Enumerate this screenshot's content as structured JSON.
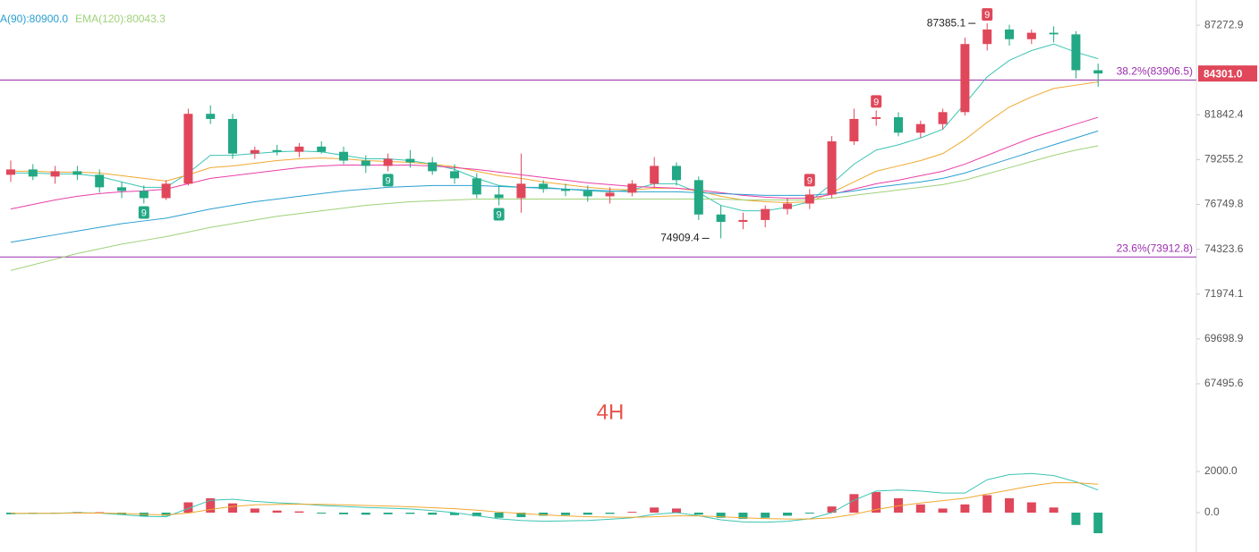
{
  "chart_data": [
    {
      "type": "candlestick",
      "log_scale": true,
      "ylim": [
        67020,
        88860
      ],
      "yticks": [
        87272.9,
        81842.4,
        79255.2,
        76749.8,
        74323.6,
        71974.1,
        69698.9,
        67495.6
      ],
      "up_color": "#e0475a",
      "down_color": "#22a884",
      "legend": [
        {
          "text": "A(90):80900.0",
          "color": "#2a9fd0"
        },
        {
          "text": "EMA(120):80043.3",
          "color": "#9fd17a"
        }
      ],
      "watermark": "4H",
      "fib_levels": [
        {
          "value": 83906.5,
          "label": "38.2%(83906.5)"
        },
        {
          "value": 73912.8,
          "label": "23.6%(73912.8)"
        }
      ],
      "fib_color": "#9b2fae",
      "last_price": {
        "value": 84301,
        "label": "84301.0"
      },
      "td_markers": [
        "9",
        "9",
        "9",
        "9",
        "9",
        "9"
      ],
      "candles": [
        [
          78400,
          79200,
          78000,
          78700
        ],
        [
          78700,
          79000,
          78100,
          78300
        ],
        [
          78300,
          78900,
          77900,
          78600
        ],
        [
          78600,
          78900,
          78100,
          78400
        ],
        [
          78400,
          78700,
          77400,
          77700
        ],
        [
          77700,
          78000,
          77100,
          77500
        ],
        [
          77500,
          77800,
          76800,
          77100
        ],
        [
          77100,
          78100,
          77000,
          77900
        ],
        [
          77900,
          82200,
          77800,
          81900
        ],
        [
          81900,
          82400,
          81300,
          81600
        ],
        [
          81600,
          81900,
          79300,
          79600
        ],
        [
          79600,
          80000,
          79300,
          79800
        ],
        [
          79800,
          80100,
          79500,
          79700
        ],
        [
          79700,
          80200,
          79400,
          80000
        ],
        [
          80000,
          80300,
          79600,
          79700
        ],
        [
          79700,
          80000,
          79000,
          79200
        ],
        [
          79200,
          79500,
          78500,
          78900
        ],
        [
          78900,
          79600,
          78600,
          79300
        ],
        [
          79300,
          79800,
          78800,
          79100
        ],
        [
          79100,
          79400,
          78400,
          78600
        ],
        [
          78600,
          79000,
          77900,
          78200
        ],
        [
          78200,
          78500,
          77100,
          77300
        ],
        [
          77300,
          77800,
          76700,
          77100
        ],
        [
          77100,
          79600,
          76300,
          77900
        ],
        [
          77900,
          78100,
          77400,
          77600
        ],
        [
          77600,
          77900,
          77200,
          77500
        ],
        [
          77500,
          77800,
          76900,
          77200
        ],
        [
          77200,
          77700,
          76800,
          77400
        ],
        [
          77400,
          78100,
          77200,
          77900
        ],
        [
          77900,
          79400,
          77700,
          78900
        ],
        [
          78900,
          79100,
          77800,
          78100
        ],
        [
          78100,
          78300,
          75900,
          76200
        ],
        [
          76200,
          76700,
          74909.4,
          75800
        ],
        [
          75800,
          76300,
          75400,
          75900
        ],
        [
          75900,
          76700,
          75500,
          76500
        ],
        [
          76500,
          77100,
          76200,
          76800
        ],
        [
          76800,
          77600,
          76500,
          77300
        ],
        [
          77300,
          80600,
          77100,
          80300
        ],
        [
          80300,
          82200,
          80100,
          81600
        ],
        [
          81600,
          82100,
          81200,
          81700
        ],
        [
          81700,
          82000,
          80600,
          80800
        ],
        [
          80800,
          81500,
          80500,
          81300
        ],
        [
          81300,
          82200,
          81000,
          82000
        ],
        [
          82000,
          86500,
          81800,
          86100
        ],
        [
          86100,
          87385.1,
          85700,
          87000
        ],
        [
          87000,
          87300,
          86000,
          86400
        ],
        [
          86400,
          87000,
          86100,
          86800
        ],
        [
          86800,
          87200,
          86200,
          86700
        ],
        [
          86700,
          86900,
          84000,
          84500
        ],
        [
          84500,
          84900,
          83500,
          84301
        ]
      ],
      "series": [
        {
          "color": "#3cc4b4",
          "values": [
            78500,
            78500,
            78450,
            78450,
            78300,
            78000,
            77700,
            77700,
            78500,
            79500,
            79500,
            79600,
            79700,
            79750,
            79700,
            79500,
            79300,
            79300,
            79200,
            79000,
            78700,
            78200,
            77800,
            77700,
            77700,
            77600,
            77500,
            77450,
            77550,
            77900,
            77900,
            77400,
            76700,
            76400,
            76400,
            76600,
            76900,
            77900,
            79000,
            79800,
            80100,
            80500,
            81000,
            82500,
            84100,
            85100,
            85700,
            86100,
            85600,
            85200
          ]
        },
        {
          "color": "#f0a830",
          "values": [
            78600,
            78600,
            78550,
            78550,
            78500,
            78350,
            78200,
            78050,
            78400,
            78800,
            78900,
            79050,
            79200,
            79300,
            79350,
            79300,
            79200,
            79150,
            79100,
            79000,
            78850,
            78600,
            78350,
            78200,
            78000,
            77850,
            77700,
            77600,
            77550,
            77650,
            77650,
            77500,
            77200,
            77000,
            76900,
            76850,
            76900,
            77400,
            78000,
            78600,
            78900,
            79200,
            79600,
            80400,
            81400,
            82300,
            82900,
            83400,
            83600,
            83800
          ]
        },
        {
          "color": "#e83fa8",
          "values": [
            76500,
            76750,
            77000,
            77200,
            77350,
            77450,
            77500,
            77600,
            77900,
            78200,
            78350,
            78500,
            78650,
            78800,
            78900,
            78950,
            78950,
            78950,
            78950,
            78900,
            78800,
            78700,
            78550,
            78400,
            78250,
            78100,
            77950,
            77850,
            77750,
            77700,
            77650,
            77550,
            77400,
            77250,
            77150,
            77100,
            77100,
            77300,
            77600,
            77900,
            78100,
            78350,
            78600,
            79000,
            79500,
            80000,
            80500,
            80900,
            81300,
            81700
          ]
        },
        {
          "color": "#2a9fd0",
          "values": [
            74700,
            74900,
            75100,
            75300,
            75500,
            75700,
            75850,
            76000,
            76250,
            76500,
            76700,
            76900,
            77050,
            77200,
            77350,
            77500,
            77600,
            77700,
            77750,
            77800,
            77800,
            77800,
            77750,
            77700,
            77650,
            77600,
            77550,
            77500,
            77450,
            77450,
            77450,
            77400,
            77350,
            77300,
            77250,
            77250,
            77250,
            77350,
            77500,
            77700,
            77850,
            78000,
            78200,
            78500,
            78900,
            79300,
            79700,
            80100,
            80500,
            80900
          ]
        },
        {
          "color": "#9fd17a",
          "values": [
            73200,
            73500,
            73800,
            74100,
            74350,
            74600,
            74800,
            75000,
            75250,
            75500,
            75700,
            75900,
            76100,
            76250,
            76400,
            76550,
            76700,
            76800,
            76900,
            76950,
            77000,
            77050,
            77050,
            77050,
            77050,
            77050,
            77050,
            77050,
            77050,
            77050,
            77050,
            77050,
            77050,
            77000,
            77000,
            77000,
            77000,
            77100,
            77250,
            77400,
            77550,
            77700,
            77850,
            78100,
            78450,
            78800,
            79150,
            79500,
            79800,
            80043.3
          ]
        }
      ]
    },
    {
      "type": "macd",
      "ylim": [
        -1913,
        3174
      ],
      "yticks": [
        {
          "value": 2000,
          "label": "2000.0"
        },
        {
          "value": 0,
          "label": "0.0"
        }
      ],
      "histogram": [
        -80,
        -60,
        -40,
        30,
        20,
        -100,
        -180,
        -150,
        500,
        700,
        450,
        200,
        100,
        60,
        -40,
        -80,
        -100,
        -80,
        -60,
        -100,
        -120,
        -180,
        -250,
        -220,
        -150,
        -120,
        -100,
        -60,
        40,
        250,
        200,
        -100,
        -250,
        -300,
        -250,
        -150,
        -40,
        300,
        900,
        1000,
        700,
        400,
        200,
        400,
        850,
        700,
        500,
        250,
        -600,
        -1000
      ],
      "up_color": "#e0475a",
      "down_color": "#22a884",
      "series": [
        {
          "color": "#3cc4b4",
          "values": [
            -50,
            -40,
            -30,
            0,
            -20,
            -100,
            -180,
            -200,
            200,
            600,
            650,
            550,
            480,
            430,
            350,
            300,
            250,
            220,
            180,
            100,
            0,
            -150,
            -300,
            -380,
            -420,
            -400,
            -380,
            -320,
            -250,
            -80,
            0,
            -150,
            -350,
            -450,
            -470,
            -420,
            -300,
            0,
            600,
            1050,
            1100,
            1050,
            950,
            950,
            1600,
            1850,
            1900,
            1800,
            1500,
            1100
          ]
        },
        {
          "color": "#f0a830",
          "values": [
            -30,
            -30,
            -30,
            -20,
            -20,
            -40,
            -80,
            -110,
            -20,
            150,
            300,
            380,
            400,
            410,
            400,
            380,
            350,
            320,
            280,
            240,
            190,
            120,
            30,
            -40,
            -110,
            -160,
            -200,
            -220,
            -230,
            -200,
            -160,
            -160,
            -200,
            -250,
            -290,
            -310,
            -310,
            -250,
            -80,
            150,
            330,
            470,
            580,
            700,
            900,
            1100,
            1300,
            1450,
            1450,
            1380
          ]
        }
      ]
    }
  ]
}
